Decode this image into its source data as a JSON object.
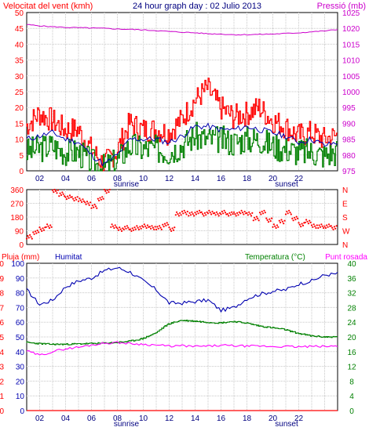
{
  "title": "24 hour graph day : 02 Julio 2013",
  "colors": {
    "wind_gust": "#ff0000",
    "wind_avg": "#008000",
    "pressure": "#cc00cc",
    "direction": "#ff0000",
    "humidity": "#0000b0",
    "temperature": "#008000",
    "dewpoint": "#ff00ff",
    "rain": "#ff0000",
    "grid": "#c8c8c8",
    "frame": "#000000"
  },
  "x_axis": {
    "hour_labels": [
      "02",
      "04",
      "06",
      "08",
      "10",
      "12",
      "14",
      "16",
      "18",
      "20",
      "22"
    ],
    "sunrise_label": "sunrise",
    "sunset_label": "sunset"
  },
  "chart_data": [
    {
      "type": "line",
      "title": "24 hour graph day : 02 Julio 2013",
      "left_label": "Velocitat del vent (kmh)",
      "right_label": "Pressió (mb)",
      "ylim_left": [
        0,
        50
      ],
      "yticks_left": [
        "0",
        "5",
        "10",
        "15",
        "20",
        "25",
        "30",
        "35",
        "40",
        "45",
        "50"
      ],
      "ylim_right": [
        975,
        1025
      ],
      "yticks_right": [
        "975",
        "980",
        "985",
        "990",
        "995",
        "1000",
        "1005",
        "1010",
        "1015",
        "1020",
        "1025"
      ],
      "x": [
        0,
        1,
        2,
        3,
        4,
        5,
        6,
        7,
        8,
        9,
        10,
        11,
        12,
        13,
        14,
        15,
        16,
        17,
        18,
        19,
        20,
        21,
        22,
        23,
        24
      ],
      "series": [
        {
          "key": "gust",
          "values": [
            14,
            18,
            16,
            13,
            13,
            7,
            2,
            6,
            15,
            13,
            13,
            12,
            16,
            22,
            26,
            20,
            17,
            18,
            20,
            16,
            14,
            11,
            12,
            10,
            11
          ]
        },
        {
          "key": "avg",
          "values": [
            6,
            7,
            8,
            6,
            6,
            3,
            1,
            3,
            8,
            7,
            7,
            6,
            8,
            11,
            10,
            10,
            9,
            10,
            10,
            8,
            7,
            6,
            6,
            5,
            6
          ]
        },
        {
          "key": "mean",
          "values": [
            10,
            11,
            12,
            10,
            9,
            5,
            2,
            5,
            10,
            10,
            10,
            9,
            11,
            14,
            14,
            13,
            13,
            14,
            13,
            12,
            11,
            9,
            10,
            8,
            9
          ]
        },
        {
          "key": "pressure",
          "axis": "right",
          "values": [
            1021.2,
            1020.8,
            1020.5,
            1020.3,
            1020.2,
            1020.1,
            1020.0,
            1019.8,
            1019.7,
            1019.5,
            1019.3,
            1019.0,
            1018.8,
            1018.6,
            1018.3,
            1018.2,
            1018.0,
            1018.0,
            1018.1,
            1018.2,
            1018.4,
            1018.6,
            1018.9,
            1019.2,
            1019.6
          ]
        }
      ]
    },
    {
      "type": "scatter",
      "title": "",
      "yticks_left": [
        "0",
        "90",
        "180",
        "270",
        "360"
      ],
      "yticks_right": [
        "N",
        "W",
        "S",
        "E",
        "N"
      ],
      "ylim": [
        0,
        360
      ],
      "x": [
        0,
        0.5,
        1,
        1.5,
        2,
        2.5,
        3,
        3.5,
        4,
        4.5,
        5,
        5.5,
        6,
        6.5,
        7,
        7.5,
        8,
        8.5,
        9,
        9.5,
        10,
        10.5,
        11,
        11.5,
        12,
        12.5,
        13,
        13.5,
        14,
        14.5,
        15,
        15.5,
        16,
        16.5,
        17,
        17.5,
        18,
        18.5,
        19,
        19.5,
        20,
        20.5,
        21,
        21.5,
        22,
        22.5,
        23,
        23.5
      ],
      "values": [
        50,
        80,
        100,
        120,
        350,
        330,
        310,
        300,
        290,
        270,
        250,
        300,
        350,
        120,
        100,
        110,
        100,
        110,
        120,
        110,
        110,
        130,
        100,
        200,
        210,
        200,
        210,
        200,
        210,
        200,
        210,
        200,
        200,
        210,
        200,
        170,
        210,
        160,
        120,
        150,
        210,
        170,
        130,
        150,
        120,
        120,
        120,
        110
      ]
    },
    {
      "type": "line",
      "title": "",
      "left_label_rain": "Pluja (mm)",
      "left_label_humidity": "Humitat",
      "right_label_temperature": "Temperatura (°C)",
      "right_label_dewpoint": "Punt rosada",
      "ylim_rain": [
        0,
        10
      ],
      "yticks_rain": [
        "0",
        "1",
        "2",
        "3",
        "4",
        "5",
        "6",
        "7",
        "8",
        "9",
        "10"
      ],
      "ylim_humidity": [
        0,
        100
      ],
      "yticks_humidity": [
        "0",
        "10",
        "20",
        "30",
        "40",
        "50",
        "60",
        "70",
        "80",
        "90",
        "100"
      ],
      "ylim_right": [
        0,
        40
      ],
      "yticks_right": [
        "0",
        "4",
        "8",
        "12",
        "16",
        "20",
        "24",
        "28",
        "32",
        "36",
        "40"
      ],
      "x": [
        0,
        1,
        2,
        3,
        4,
        5,
        6,
        7,
        8,
        9,
        10,
        11,
        12,
        13,
        14,
        15,
        16,
        17,
        18,
        19,
        20,
        21,
        22,
        23,
        24
      ],
      "series": [
        {
          "key": "humidity",
          "values": [
            82,
            72,
            75,
            84,
            88,
            90,
            95,
            97,
            94,
            88,
            82,
            73,
            73,
            74,
            75,
            68,
            70,
            76,
            79,
            81,
            82,
            86,
            88,
            92,
            93
          ]
        },
        {
          "key": "temperature",
          "axis": "right",
          "values": [
            18.5,
            18.2,
            18.0,
            18.0,
            18.1,
            18.2,
            18.3,
            18.5,
            18.8,
            19.5,
            21.0,
            23.5,
            24.5,
            24.3,
            24.0,
            23.8,
            24.2,
            23.8,
            23.0,
            22.5,
            22.0,
            21.0,
            20.3,
            20.0,
            20.0
          ]
        },
        {
          "key": "dewpoint",
          "axis": "right",
          "values": [
            16.2,
            15.0,
            16.0,
            16.8,
            17.2,
            17.8,
            18.3,
            18.5,
            18.2,
            18.0,
            17.8,
            17.5,
            17.6,
            17.4,
            17.5,
            17.7,
            17.6,
            17.5,
            17.5,
            17.4,
            17.4,
            17.3,
            17.4,
            17.4,
            17.5
          ]
        },
        {
          "key": "rain",
          "values": [
            0,
            0,
            0,
            0,
            0,
            0,
            0,
            0,
            0,
            0,
            0,
            0,
            0,
            0,
            0,
            0,
            0,
            0,
            0,
            0,
            0,
            0,
            0,
            0,
            0
          ]
        }
      ]
    }
  ]
}
